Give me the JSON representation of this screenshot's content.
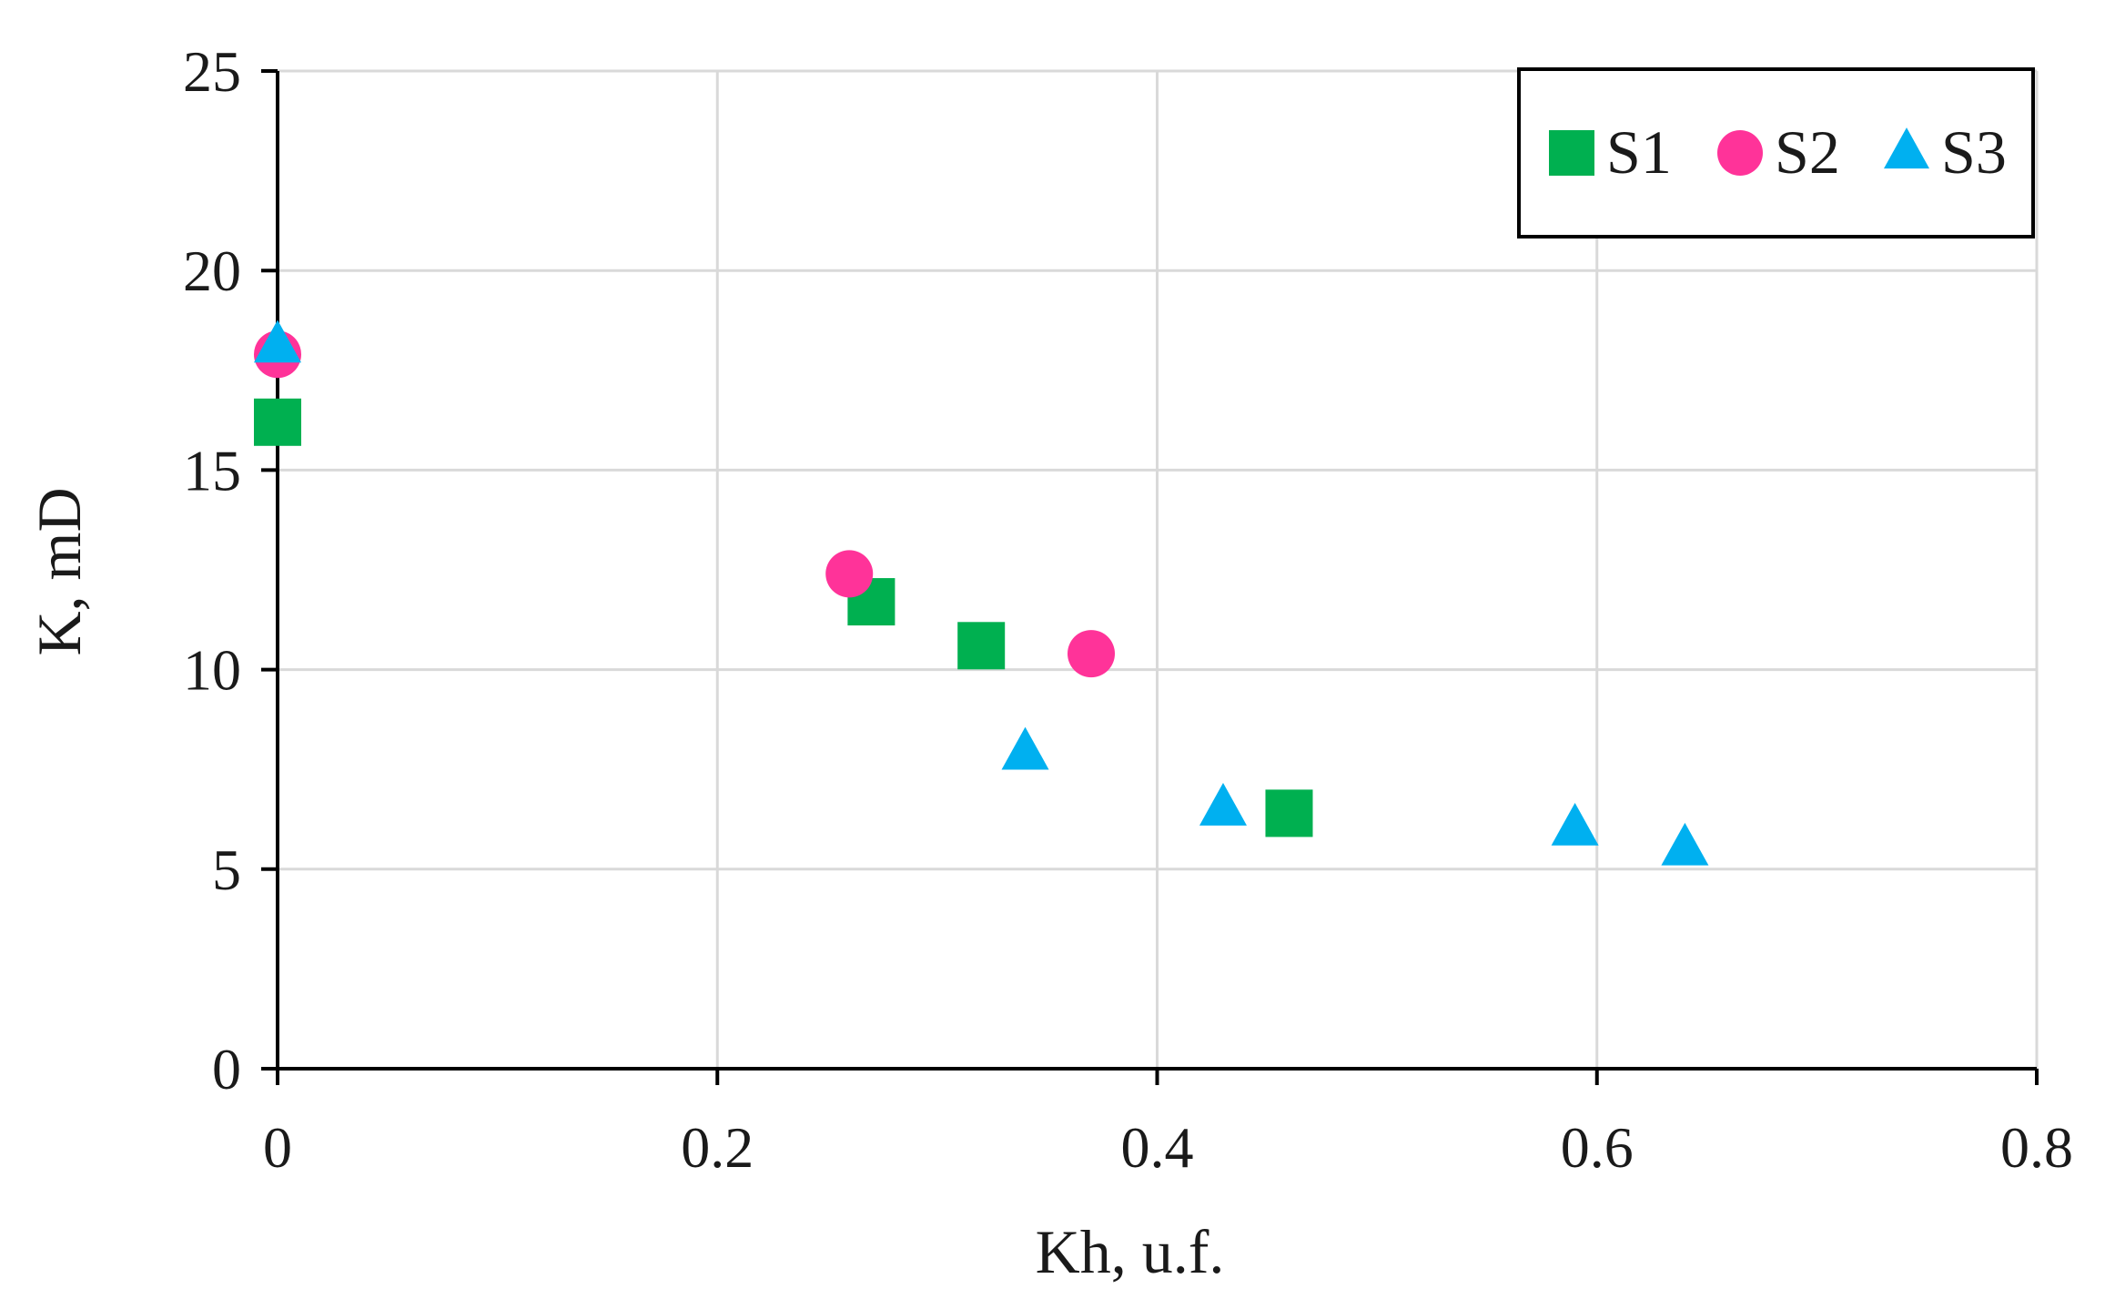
{
  "chart_data": {
    "type": "scatter",
    "title": "",
    "xlabel": "Kh, u.f.",
    "ylabel": "K, mD",
    "xlim": [
      0,
      0.8
    ],
    "ylim": [
      0,
      25
    ],
    "xticks": [
      0,
      0.2,
      0.4,
      0.6,
      0.8
    ],
    "xtick_labels": [
      "0",
      "0.2",
      "0.4",
      "0.6",
      "0.8"
    ],
    "yticks": [
      0,
      5,
      10,
      15,
      20,
      25
    ],
    "ytick_labels": [
      "0",
      "5",
      "10",
      "15",
      "20",
      "25"
    ],
    "grid": true,
    "legend_position": "top-right",
    "series": [
      {
        "name": "S1",
        "marker": "square",
        "color": "#00b050",
        "points": [
          {
            "x": 0.0,
            "y": 16.2
          },
          {
            "x": 0.27,
            "y": 11.7
          },
          {
            "x": 0.32,
            "y": 10.6
          },
          {
            "x": 0.46,
            "y": 6.4
          }
        ]
      },
      {
        "name": "S2",
        "marker": "circle",
        "color": "#ff3399",
        "points": [
          {
            "x": 0.0,
            "y": 17.9
          },
          {
            "x": 0.26,
            "y": 12.4
          },
          {
            "x": 0.37,
            "y": 10.4
          }
        ]
      },
      {
        "name": "S3",
        "marker": "triangle",
        "color": "#00b0f0",
        "points": [
          {
            "x": 0.0,
            "y": 18.1
          },
          {
            "x": 0.34,
            "y": 7.9
          },
          {
            "x": 0.43,
            "y": 6.5
          },
          {
            "x": 0.59,
            "y": 6.0
          },
          {
            "x": 0.64,
            "y": 5.5
          }
        ]
      }
    ]
  }
}
